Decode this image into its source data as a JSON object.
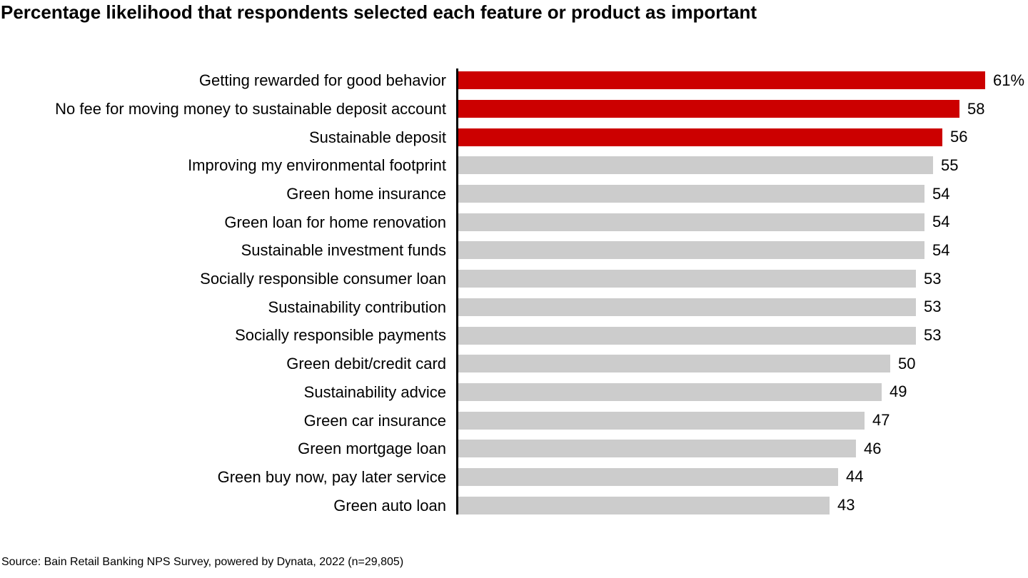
{
  "page": {
    "title": "Percentage likelihood that respondents selected each feature or product as important",
    "source": "Source: Bain Retail Banking NPS Survey, powered by Dynata, 2022 (n=29,805)"
  },
  "colors": {
    "highlight_bar": "#CC0000",
    "default_bar": "#CCCCCC",
    "axis": "#000000",
    "text": "#000000",
    "background": "#FFFFFF"
  },
  "chart_data": {
    "type": "bar",
    "orientation": "horizontal",
    "title": "Percentage likelihood that respondents selected each feature or product as important",
    "xlabel": "",
    "ylabel": "",
    "xlim": [
      0,
      61
    ],
    "grid": false,
    "legend": "none",
    "value_labels": "end-of-bar",
    "categories": [
      "Getting rewarded for good behavior",
      "No fee for moving money to sustainable deposit account",
      "Sustainable deposit",
      "Improving my environmental footprint",
      "Green home insurance",
      "Green loan for home renovation",
      "Sustainable investment funds",
      "Socially responsible consumer loan",
      "Sustainability contribution",
      "Socially responsible payments",
      "Green debit/credit card",
      "Sustainability advice",
      "Green car insurance",
      "Green mortgage loan",
      "Green buy now, pay later service",
      "Green auto loan"
    ],
    "values": [
      61,
      58,
      56,
      55,
      54,
      54,
      54,
      53,
      53,
      53,
      50,
      49,
      47,
      46,
      44,
      43
    ],
    "display_values": [
      "61%",
      "58",
      "56",
      "55",
      "54",
      "54",
      "54",
      "53",
      "53",
      "53",
      "50",
      "49",
      "47",
      "46",
      "44",
      "43"
    ],
    "highlighted": [
      true,
      true,
      true,
      false,
      false,
      false,
      false,
      false,
      false,
      false,
      false,
      false,
      false,
      false,
      false,
      false
    ],
    "source": "Source: Bain Retail Banking NPS Survey, powered by Dynata, 2022 (n=29,805)"
  }
}
